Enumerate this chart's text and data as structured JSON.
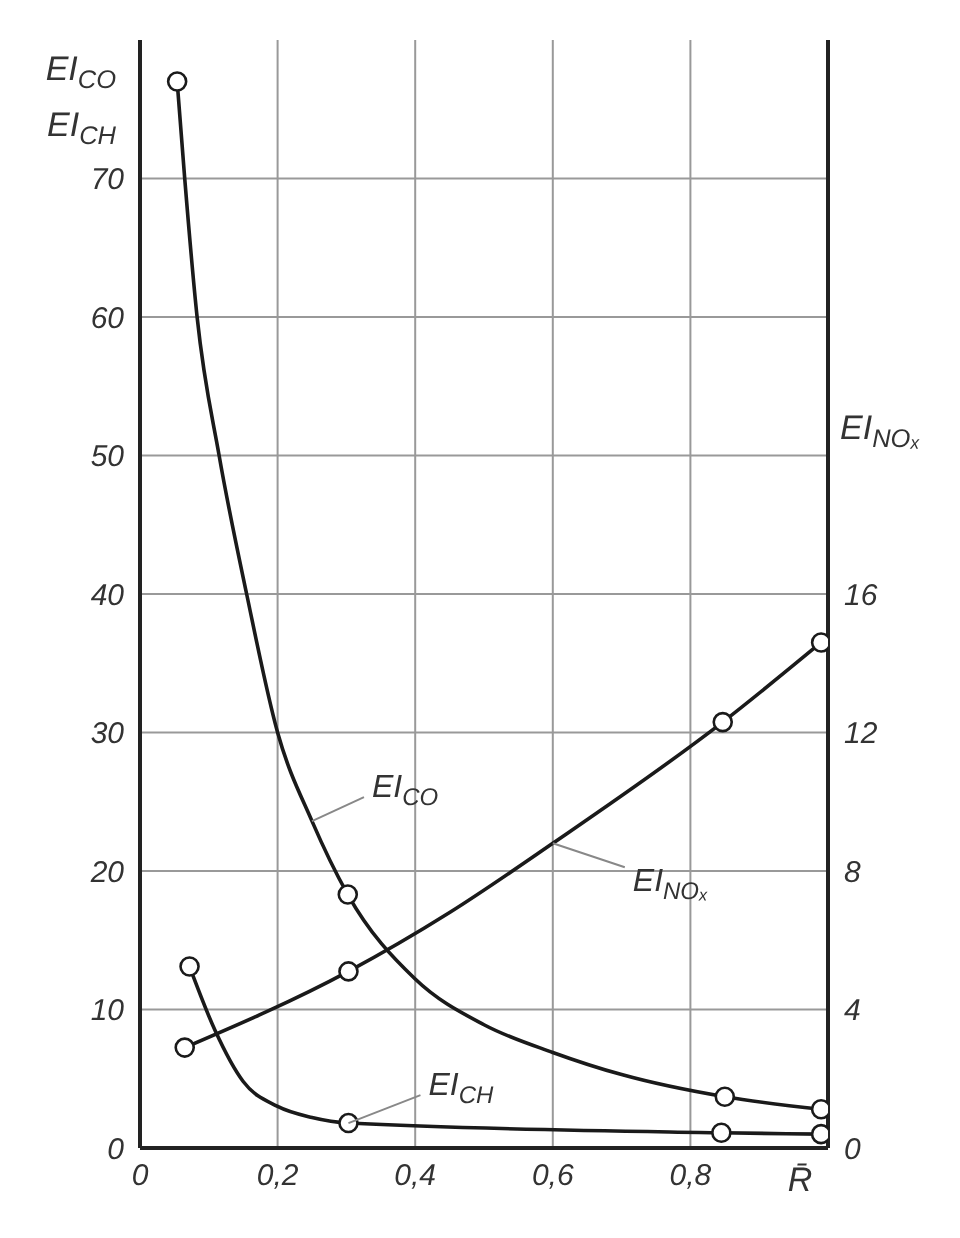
{
  "chart_data": {
    "type": "line",
    "xlabel": "R̄",
    "ylabel": "EI$_{CO}$\nEI$_{CH}$",
    "y2label": "EI$_{NOₓ}$",
    "xlim": [
      0,
      1
    ],
    "xticks": [
      0,
      {
        "value": 0.2,
        "label": "0,2"
      },
      {
        "value": 0.4,
        "label": "0,4"
      },
      {
        "value": 0.6,
        "label": "0,6"
      },
      {
        "value": 0.8,
        "label": "0,8"
      }
    ],
    "ylim": [
      0,
      80
    ],
    "yticks": [
      0,
      10,
      20,
      30,
      40,
      50,
      60,
      70
    ],
    "y2lim": [
      0,
      32
    ],
    "y2ticks": [
      0,
      4,
      8,
      12,
      16
    ],
    "grid": true,
    "marker": "circle",
    "line_style": "solid",
    "series": [
      {
        "name": "EI$_{CO}$",
        "color": "#1a1a1a",
        "marker": "none",
        "x": [
          0.054,
          0.065,
          0.083,
          0.115,
          0.155,
          0.2,
          0.25,
          0.302,
          0.4,
          0.5,
          0.6,
          0.7,
          0.85,
          0.99
        ],
        "values": [
          77,
          70,
          60,
          50,
          40,
          30,
          23.6,
          18.3,
          12.2,
          8.9,
          6.9,
          5.3,
          3.7,
          2.8
        ]
      },
      {
        "name": "EI$_{CH}$",
        "color": "#1a1a1a",
        "marker": "none",
        "x": [
          0.072,
          0.109,
          0.15,
          0.2,
          0.25,
          0.303,
          0.845,
          0.99
        ],
        "values": [
          13.1,
          8.5,
          4.8,
          3,
          2.2,
          1.8,
          1.1,
          1
        ]
      },
      {
        "name": "EI$_{NOₓ}$",
        "color": "#1a1a1a",
        "marker": "none",
        "axis": "y2",
        "x": [
          0.065,
          0.303,
          0.45,
          0.6,
          0.847,
          0.99
        ],
        "values": [
          2.9,
          5.1,
          6.8,
          8.8,
          12.3,
          14.6
        ]
      },
      {
        "type": "scatter",
        "color": "#1a1a1a",
        "x": [
          0.054,
          0.302,
          0.85,
          0.99
        ],
        "values": [
          77,
          18.3,
          3.7,
          2.8
        ]
      },
      {
        "type": "scatter",
        "color": "#1a1a1a",
        "x": [
          0.072,
          0.303,
          0.845,
          0.99
        ],
        "values": [
          13.1,
          1.8,
          1.1,
          1
        ]
      },
      {
        "type": "scatter",
        "color": "#1a1a1a",
        "axis": "y2",
        "x": [
          0.065,
          0.303,
          0.847,
          0.99
        ],
        "values": [
          2.9,
          5.1,
          12.3,
          14.6
        ]
      }
    ]
  }
}
